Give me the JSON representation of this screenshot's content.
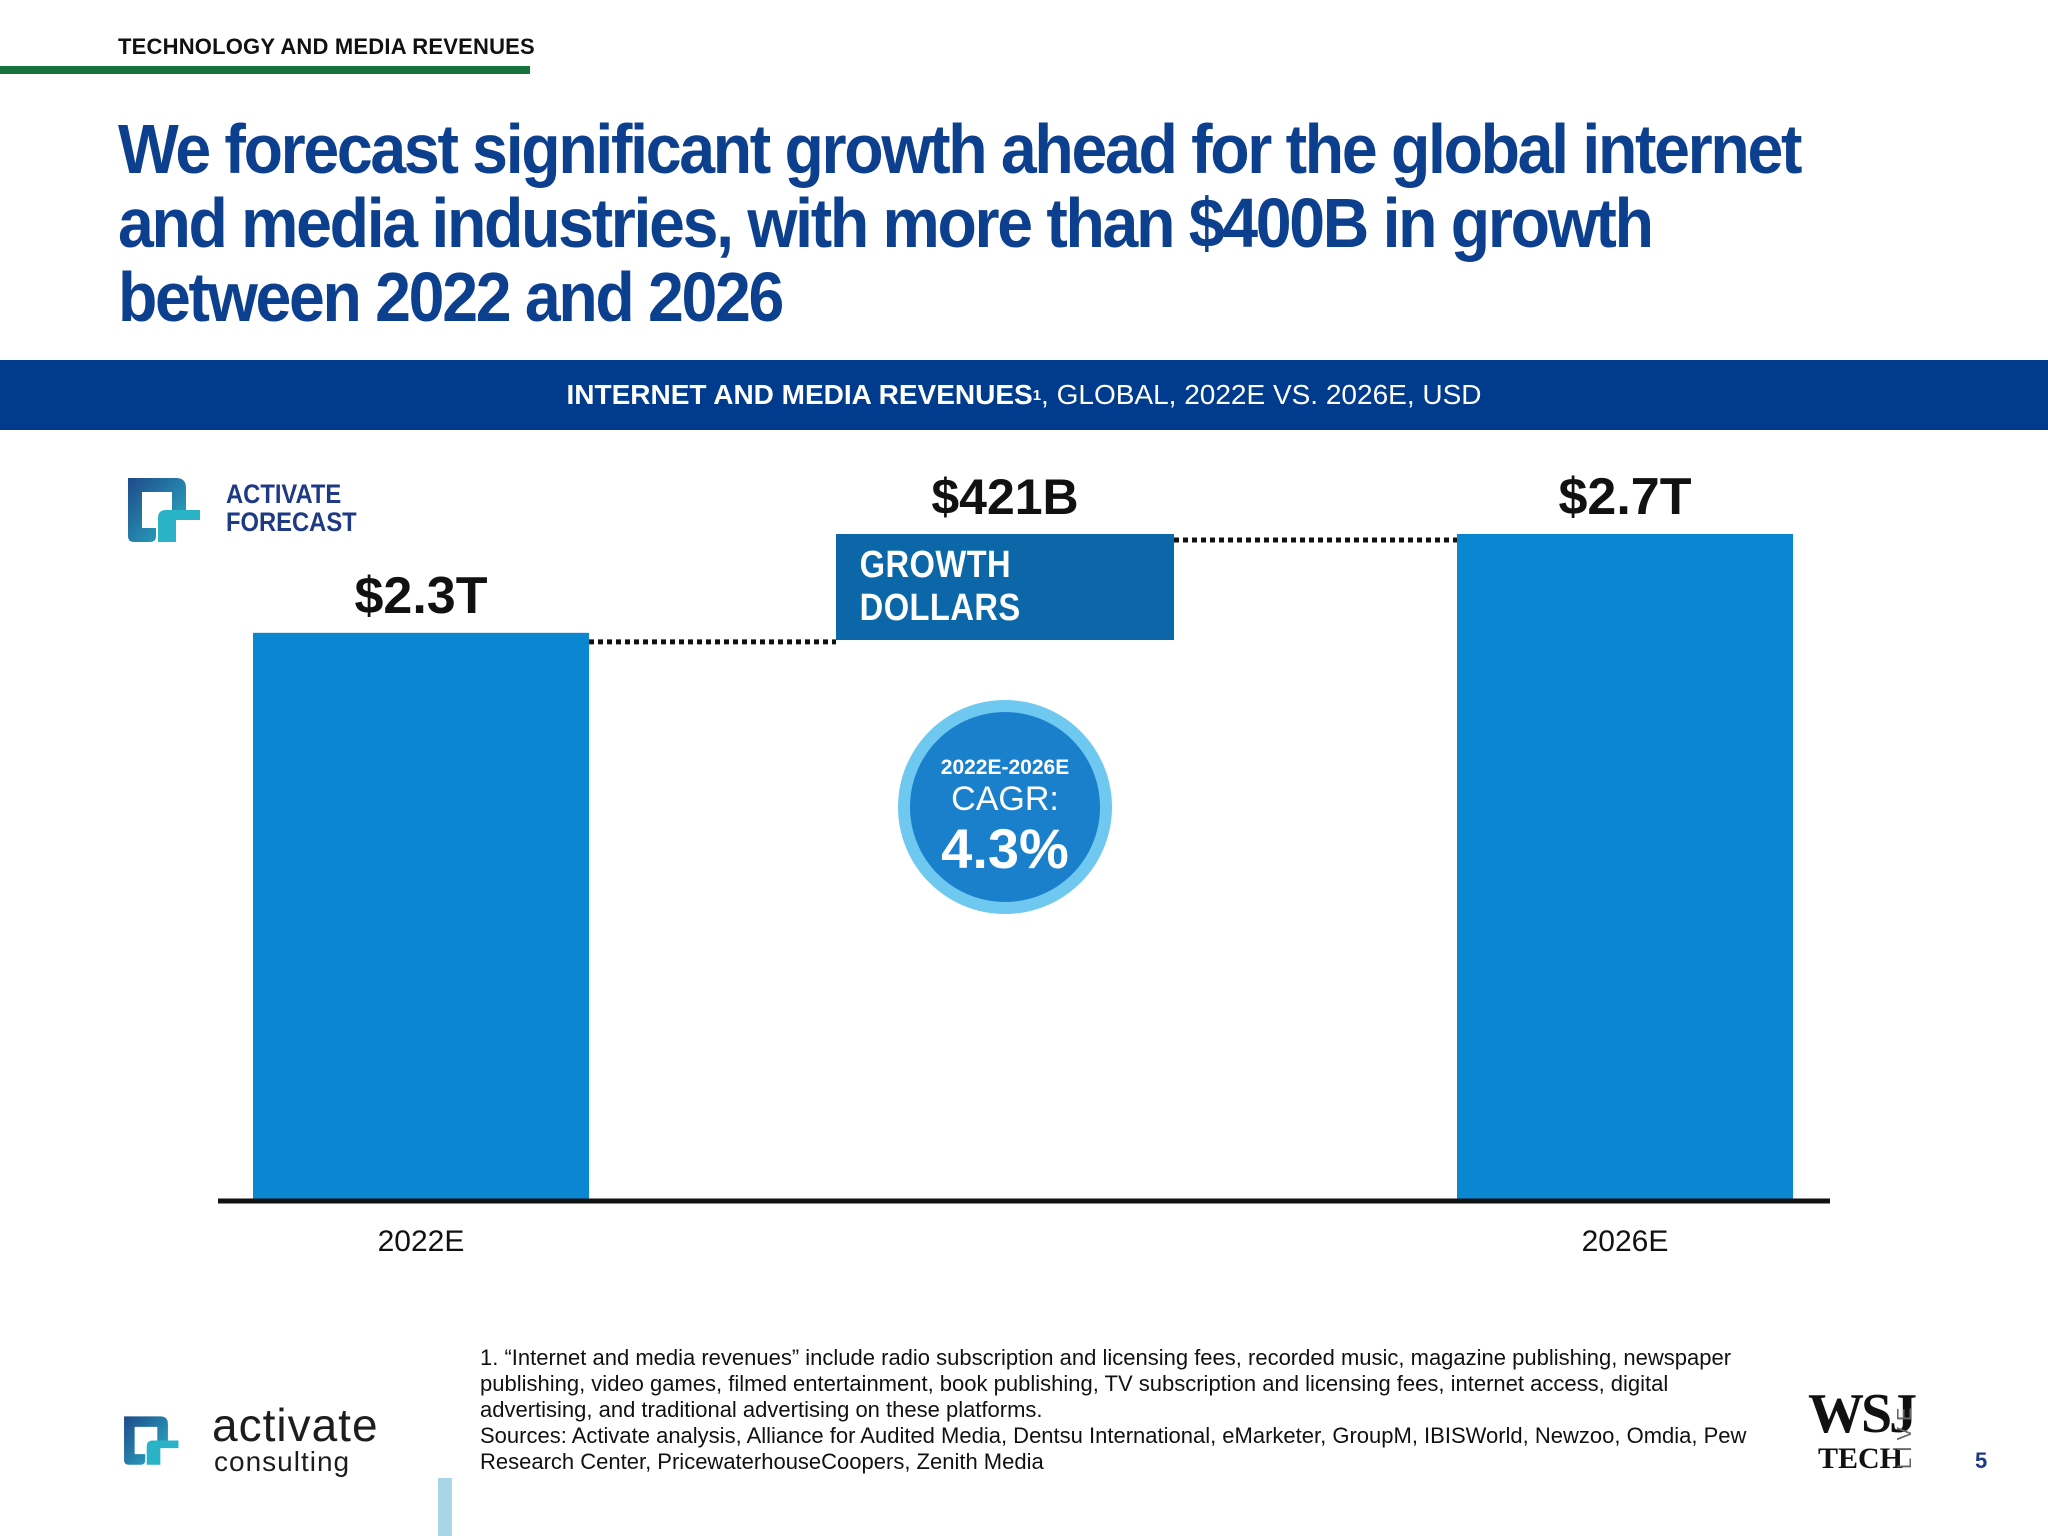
{
  "section_label": "TECHNOLOGY AND MEDIA REVENUES",
  "headline": "We forecast significant growth ahead for the global internet and media industries, with more than $400B in growth between 2022 and 2026",
  "chart_header": {
    "bold": "INTERNET AND MEDIA REVENUES",
    "superscript": "1",
    "rest": ", GLOBAL, 2022E VS. 2026E, USD"
  },
  "forecast_badge": {
    "line1": "ACTIVATE",
    "line2": "FORECAST"
  },
  "chart_data": {
    "type": "bar",
    "title": "INTERNET AND MEDIA REVENUES, GLOBAL, 2022E VS. 2026E, USD",
    "categories": [
      "2022E",
      "2026E"
    ],
    "values": [
      2.3,
      2.7
    ],
    "value_labels": [
      "$2.3T",
      "$2.7T"
    ],
    "unit": "USD trillions",
    "ylim": [
      0,
      2.7
    ],
    "growth": {
      "value": 421,
      "label": "$421B",
      "unit": "USD billions",
      "text": "GROWTH DOLLARS"
    },
    "cagr": {
      "period": "2022E-2026E",
      "label": "CAGR:",
      "value": "4.3%"
    },
    "grid": false,
    "bar_color": "#0a87d0"
  },
  "footnote": "1. “Internet and media revenues” include radio subscription and licensing fees, recorded music, magazine publishing, newspaper publishing, video games, filmed entertainment, book publishing, TV subscription and licensing fees, internet access, digital advertising, and traditional advertising on these platforms.",
  "sources": "Sources: Activate analysis, Alliance for Audited Media, Dentsu International, eMarketer, GroupM, IBISWorld, Newzoo, Omdia, Pew Research Center, PricewaterhouseCoopers, Zenith Media",
  "brand": {
    "word": "activate",
    "sub": "consulting"
  },
  "wsj": {
    "top": "WSJ",
    "bottom": "TECH",
    "side": "LIVE"
  },
  "page_number": "5",
  "colors": {
    "navy": "#003b8e",
    "headline": "#0d3f8f",
    "bar": "#0a87d0",
    "green_rule": "#17713a",
    "cagr_ring": "#6ec8f0",
    "cagr_core": "#1b80cc"
  }
}
